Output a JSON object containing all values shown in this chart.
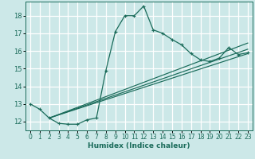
{
  "title": "",
  "xlabel": "Humidex (Indice chaleur)",
  "ylabel": "",
  "bg_color": "#cce8e8",
  "grid_color": "#ffffff",
  "line_color": "#1a6b5a",
  "xlim": [
    -0.5,
    23.5
  ],
  "ylim": [
    11.5,
    18.8
  ],
  "xticks": [
    0,
    1,
    2,
    3,
    4,
    5,
    6,
    7,
    8,
    9,
    10,
    11,
    12,
    13,
    14,
    15,
    16,
    17,
    18,
    19,
    20,
    21,
    22,
    23
  ],
  "yticks": [
    12,
    13,
    14,
    15,
    16,
    17,
    18
  ],
  "main_x": [
    0,
    1,
    2,
    3,
    4,
    5,
    6,
    7,
    8,
    9,
    10,
    11,
    12,
    13,
    14,
    15,
    16,
    17,
    18,
    19,
    20,
    21,
    22,
    23
  ],
  "main_y": [
    13.0,
    12.7,
    12.2,
    11.9,
    11.85,
    11.85,
    12.1,
    12.2,
    14.9,
    17.1,
    18.0,
    18.0,
    18.55,
    17.2,
    17.0,
    16.65,
    16.35,
    15.85,
    15.5,
    15.4,
    15.6,
    16.2,
    15.8,
    15.9
  ],
  "trend_lines": [
    {
      "x": [
        2,
        23
      ],
      "y": [
        12.2,
        15.85
      ]
    },
    {
      "x": [
        2,
        23
      ],
      "y": [
        12.2,
        16.1
      ]
    },
    {
      "x": [
        2,
        23
      ],
      "y": [
        12.2,
        16.45
      ]
    }
  ]
}
